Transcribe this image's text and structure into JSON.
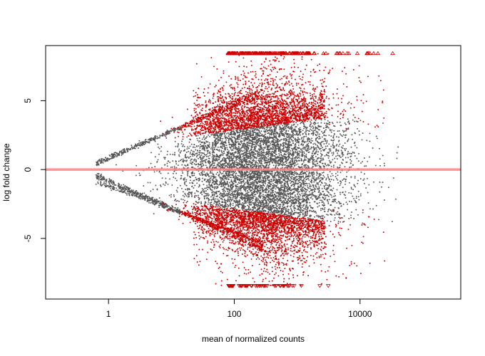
{
  "chart_data": {
    "type": "scatter",
    "title": "",
    "xlabel": "mean of normalized counts",
    "ylabel": "log fold change",
    "x_scale": "log10",
    "xlim": [
      0.1,
      400000
    ],
    "ylim": [
      -9.4,
      9.0
    ],
    "x_ticks": [
      1,
      100,
      10000
    ],
    "x_tick_labels": [
      "1",
      "100",
      "10000"
    ],
    "y_ticks": [
      -5,
      0,
      5
    ],
    "y_tick_labels": [
      "-5",
      "0",
      "5"
    ],
    "grid": false,
    "legend": "none",
    "reference_line": {
      "y": 0,
      "color": "#ff8080"
    },
    "series": [
      {
        "role": "not significant",
        "color": "#555555",
        "marker": "dot",
        "approx_points": 9000
      },
      {
        "role": "significant",
        "color": "#cc0000",
        "marker": "dot",
        "approx_points": 2500
      },
      {
        "role": "clipped above range",
        "color": "#cc0000",
        "marker": "triangle-up",
        "y_clip": 8.45
      },
      {
        "role": "clipped below range",
        "color": "#cc0000",
        "marker": "triangle-down",
        "y_clip": -8.45
      }
    ]
  }
}
